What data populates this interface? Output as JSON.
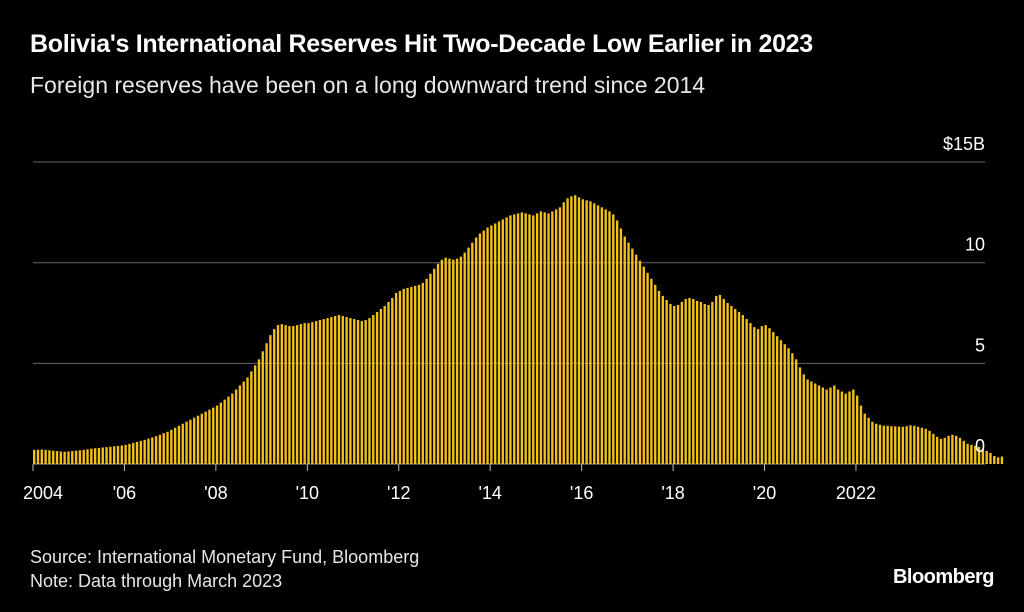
{
  "header": {
    "title": "Bolivia's International Reserves Hit Two-Decade Low Earlier in 2023",
    "subtitle": "Foreign reserves have been on a long downward trend since 2014"
  },
  "footer": {
    "source": "Source: International Monetary Fund, Bloomberg",
    "note": "Note: Data through March 2023",
    "brand": "Bloomberg"
  },
  "colors": {
    "bar": "#f2c21a",
    "background": "#000000",
    "grid": "#666666"
  },
  "chart_data": {
    "type": "bar",
    "title": "Bolivia's International Reserves Hit Two-Decade Low Earlier in 2023",
    "subtitle": "Foreign reserves have been on a long downward trend since 2014",
    "frequency": "monthly",
    "start": "2004-01",
    "end": "2023-03",
    "ylim": [
      0,
      15
    ],
    "y_ticks": [
      0,
      5,
      10,
      15
    ],
    "y_tick_labels": [
      "0",
      "5",
      "10",
      "$15B"
    ],
    "x_ticks": [
      2004,
      2006,
      2008,
      2010,
      2012,
      2014,
      2016,
      2018,
      2020,
      2022
    ],
    "x_tick_labels": [
      "2004",
      "'06",
      "'08",
      "'10",
      "'12",
      "'14",
      "'16",
      "'18",
      "'20",
      "2022"
    ],
    "grid": true,
    "ylabel": "",
    "xlabel": "",
    "values": [
      0.7,
      0.71,
      0.72,
      0.7,
      0.68,
      0.66,
      0.64,
      0.62,
      0.61,
      0.62,
      0.64,
      0.66,
      0.68,
      0.7,
      0.73,
      0.76,
      0.78,
      0.8,
      0.82,
      0.84,
      0.86,
      0.88,
      0.9,
      0.92,
      0.95,
      1.0,
      1.05,
      1.1,
      1.15,
      1.2,
      1.26,
      1.32,
      1.38,
      1.45,
      1.53,
      1.6,
      1.7,
      1.8,
      1.9,
      2.0,
      2.1,
      2.2,
      2.3,
      2.4,
      2.5,
      2.6,
      2.7,
      2.8,
      2.9,
      3.05,
      3.2,
      3.35,
      3.5,
      3.7,
      3.9,
      4.1,
      4.3,
      4.6,
      4.9,
      5.2,
      5.6,
      6.0,
      6.4,
      6.7,
      6.9,
      6.95,
      6.9,
      6.85,
      6.85,
      6.9,
      6.95,
      7.0,
      7.0,
      7.05,
      7.1,
      7.15,
      7.2,
      7.25,
      7.3,
      7.35,
      7.4,
      7.35,
      7.3,
      7.25,
      7.2,
      7.15,
      7.1,
      7.15,
      7.25,
      7.4,
      7.55,
      7.7,
      7.85,
      8.05,
      8.25,
      8.5,
      8.6,
      8.7,
      8.75,
      8.8,
      8.85,
      8.9,
      9.0,
      9.2,
      9.45,
      9.7,
      9.95,
      10.15,
      10.25,
      10.2,
      10.15,
      10.2,
      10.3,
      10.5,
      10.75,
      11.0,
      11.25,
      11.45,
      11.6,
      11.75,
      11.85,
      11.95,
      12.05,
      12.15,
      12.25,
      12.35,
      12.4,
      12.45,
      12.5,
      12.45,
      12.4,
      12.35,
      12.45,
      12.55,
      12.5,
      12.45,
      12.55,
      12.65,
      12.75,
      13.0,
      13.2,
      13.3,
      13.35,
      13.25,
      13.15,
      13.1,
      13.05,
      12.95,
      12.85,
      12.75,
      12.65,
      12.55,
      12.4,
      12.1,
      11.7,
      11.3,
      11.0,
      10.7,
      10.4,
      10.1,
      9.8,
      9.5,
      9.2,
      8.9,
      8.6,
      8.35,
      8.15,
      7.95,
      7.85,
      7.9,
      8.05,
      8.2,
      8.25,
      8.2,
      8.1,
      8.05,
      7.95,
      7.9,
      8.05,
      8.35,
      8.4,
      8.2,
      8.0,
      7.85,
      7.7,
      7.55,
      7.4,
      7.2,
      7.0,
      6.8,
      6.7,
      6.85,
      6.9,
      6.75,
      6.55,
      6.35,
      6.15,
      5.95,
      5.75,
      5.5,
      5.2,
      4.8,
      4.45,
      4.2,
      4.1,
      4.0,
      3.9,
      3.8,
      3.7,
      3.8,
      3.9,
      3.7,
      3.6,
      3.5,
      3.6,
      3.7,
      3.4,
      2.9,
      2.5,
      2.3,
      2.1,
      2.0,
      1.95,
      1.9,
      1.9,
      1.88,
      1.87,
      1.86,
      1.85,
      1.88,
      1.92,
      1.9,
      1.85,
      1.8,
      1.75,
      1.65,
      1.5,
      1.35,
      1.25,
      1.3,
      1.4,
      1.45,
      1.4,
      1.3,
      1.15,
      1.0,
      0.95,
      0.9,
      0.85,
      0.75,
      0.65,
      0.55,
      0.4,
      0.33,
      0.37
    ]
  }
}
